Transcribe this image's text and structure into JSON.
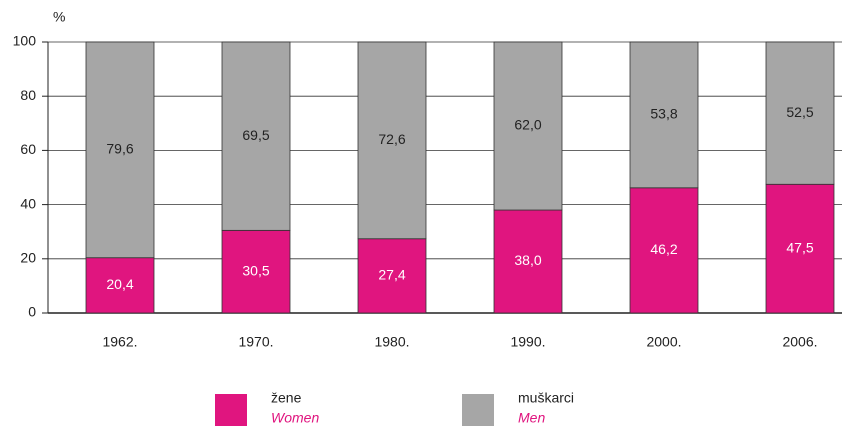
{
  "chart_data": {
    "type": "stacked_bar",
    "y_label": "%",
    "categories": [
      "1962.",
      "1970.",
      "1980.",
      "1990.",
      "2000.",
      "2006."
    ],
    "series": [
      {
        "name": "žene",
        "name_en": "Women",
        "color": "#e0157f",
        "label_color": "#ffffff",
        "values": [
          20.4,
          30.5,
          27.4,
          38.0,
          46.2,
          47.5
        ],
        "value_labels": [
          "20,4",
          "30,5",
          "27,4",
          "38,0",
          "46,2",
          "47,5"
        ]
      },
      {
        "name": "muškarci",
        "name_en": "Men",
        "color": "#a6a6a6",
        "label_color": "#222222",
        "values": [
          79.6,
          69.5,
          72.6,
          62.0,
          53.8,
          52.5
        ],
        "value_labels": [
          "79,6",
          "69,5",
          "72,6",
          "62,0",
          "53,8",
          "52,5"
        ]
      }
    ],
    "ylim": [
      0,
      100
    ],
    "yticks": [
      0,
      20,
      40,
      60,
      80,
      100
    ],
    "grid": true
  }
}
